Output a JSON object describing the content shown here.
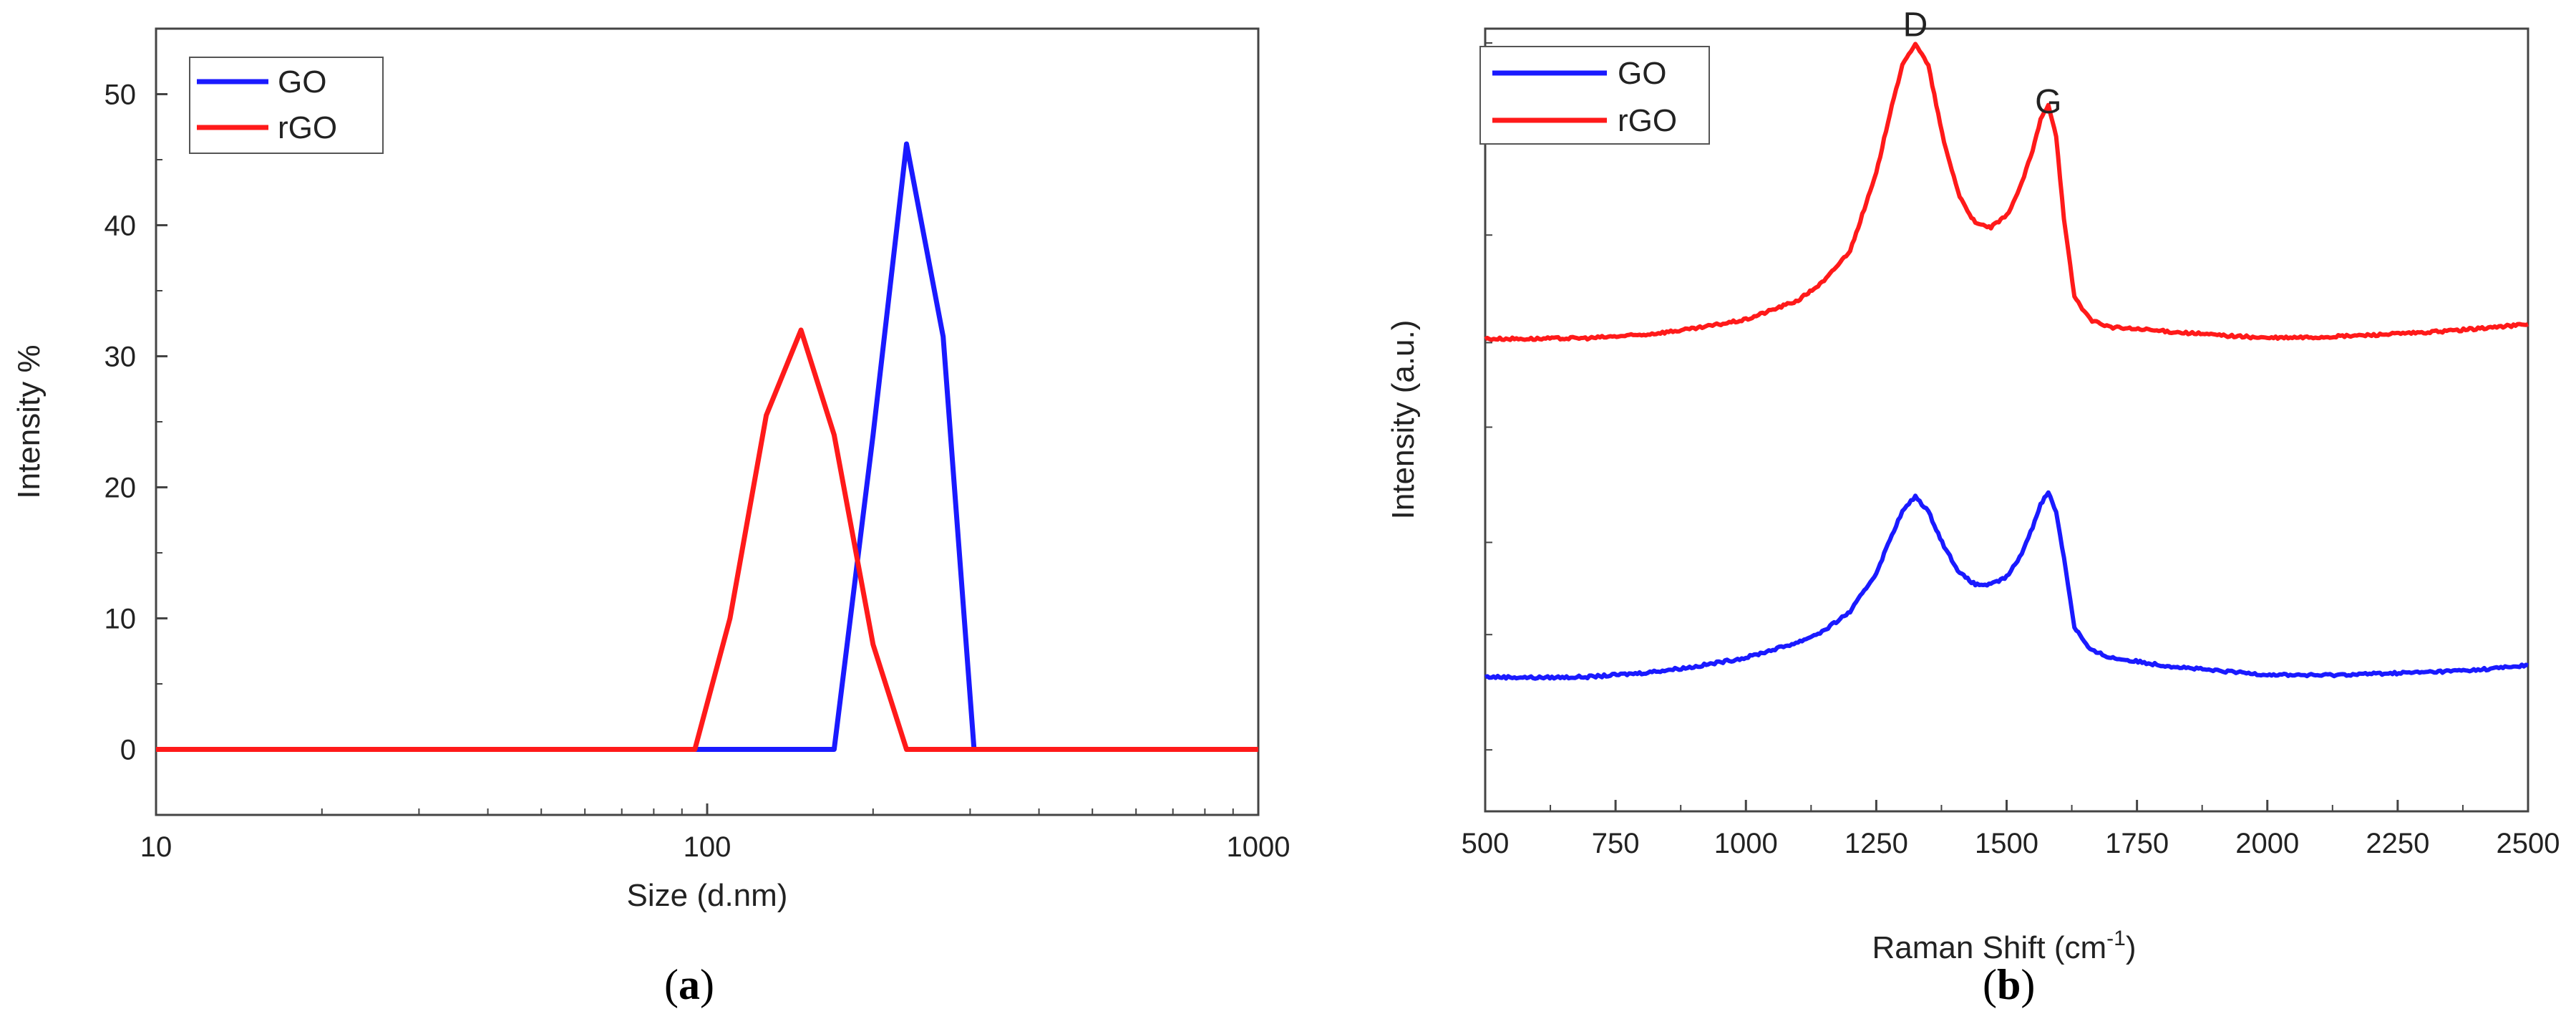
{
  "chart_data": [
    {
      "type": "line",
      "panel_label": "a",
      "title": "",
      "xlabel": "Size (d.nm)",
      "ylabel": "Intensity %",
      "xscale": "log",
      "xlim": [
        10,
        1000
      ],
      "ylim": [
        -5,
        55
      ],
      "xticks": [
        10,
        100,
        1000
      ],
      "yticks": [
        0,
        10,
        20,
        30,
        40,
        50
      ],
      "xtick_labels": [
        "10",
        "100",
        "1000"
      ],
      "ytick_labels": [
        "0",
        "10",
        "20",
        "30",
        "40",
        "50"
      ],
      "legend_position": "top-left",
      "series": [
        {
          "name": "GO",
          "color": "#1a1aff",
          "x": [
            10,
            95,
            170,
            200,
            230,
            268,
            305,
            1000
          ],
          "y": [
            0,
            0,
            0,
            24,
            46.2,
            31.5,
            0,
            0
          ]
        },
        {
          "name": "rGO",
          "color": "#ff1a1a",
          "x": [
            10,
            95,
            110,
            128,
            148,
            170,
            200,
            230,
            1000
          ],
          "y": [
            0,
            0,
            10,
            25.5,
            32,
            24,
            8,
            0,
            0
          ]
        }
      ]
    },
    {
      "type": "line",
      "panel_label": "b",
      "title": "",
      "xlabel": "Raman Shift (cm",
      "xlabel_sup": "-1",
      "xlabel_close": ")",
      "ylabel": "Intensity (a.u.)",
      "xlim": [
        500,
        2500
      ],
      "ylim": [
        0,
        100
      ],
      "xticks": [
        500,
        750,
        1000,
        1250,
        1500,
        1750,
        2000,
        2250,
        2500
      ],
      "xtick_labels": [
        "500",
        "750",
        "1000",
        "1250",
        "1500",
        "1750",
        "2000",
        "2250",
        "2500"
      ],
      "yticks_unlabeled": [
        8,
        23,
        35,
        50,
        61,
        75,
        88,
        100
      ],
      "legend_position": "top-left",
      "annotations": [
        {
          "text": "D",
          "x": 1325,
          "y": 99
        },
        {
          "text": "G",
          "x": 1580,
          "y": 89
        }
      ],
      "series": [
        {
          "name": "GO",
          "color": "#1a1aff",
          "x": [
            500,
            600,
            700,
            800,
            900,
            1000,
            1100,
            1150,
            1200,
            1250,
            1280,
            1300,
            1325,
            1350,
            1380,
            1410,
            1440,
            1470,
            1500,
            1525,
            1550,
            1565,
            1580,
            1595,
            1610,
            1630,
            1660,
            1700,
            1800,
            1900,
            2000,
            2100,
            2200,
            2300,
            2400,
            2500
          ],
          "y": [
            17.5,
            17.4,
            17.5,
            18,
            18.8,
            20,
            22,
            23.5,
            26,
            31,
            36,
            39,
            41,
            39,
            34.5,
            31,
            29.5,
            29.5,
            30.5,
            33,
            37,
            40,
            41.5,
            39,
            33,
            24,
            21,
            20,
            19,
            18.3,
            17.8,
            17.7,
            17.9,
            18.1,
            18.4,
            19
          ]
        },
        {
          "name": "rGO",
          "color": "#ff1a1a",
          "x": [
            500,
            600,
            700,
            800,
            900,
            1000,
            1100,
            1150,
            1200,
            1250,
            1280,
            1300,
            1325,
            1350,
            1380,
            1410,
            1440,
            1470,
            1500,
            1525,
            1550,
            1565,
            1580,
            1595,
            1610,
            1630,
            1660,
            1700,
            1800,
            1900,
            2000,
            2100,
            2200,
            2300,
            2400,
            2500
          ],
          "y": [
            61.5,
            61.5,
            61.6,
            62,
            62.8,
            64,
            66.5,
            69,
            73,
            83,
            92,
            97,
            100,
            97,
            87,
            80,
            76.5,
            76,
            77.5,
            81,
            86,
            90,
            92,
            88,
            77,
            67,
            64,
            63,
            62.5,
            62,
            61.6,
            61.7,
            62,
            62.3,
            62.8,
            63.4
          ]
        }
      ]
    }
  ]
}
